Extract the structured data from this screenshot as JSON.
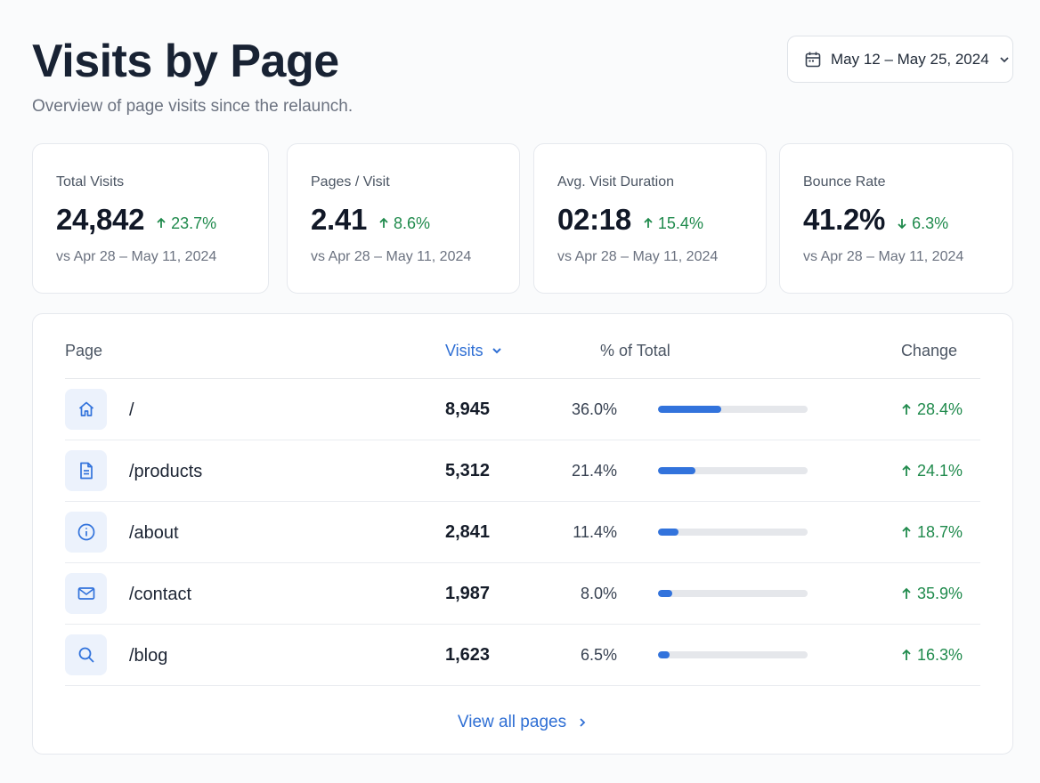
{
  "header": {
    "title": "Visits by Page",
    "subtitle": "Overview of page visits since the relaunch.",
    "date_range": "May 12 – May 25, 2024",
    "date_icon": "calendar-icon",
    "date_chevron": "chevron-down-icon"
  },
  "stats": [
    {
      "title": "Total Visits",
      "value": "24,842",
      "change": "23.7%",
      "direction": "up",
      "compare": "vs Apr 28 – May 11, 2024"
    },
    {
      "title": "Pages / Visit",
      "value": "2.41",
      "change": "8.6%",
      "direction": "up",
      "compare": "vs Apr 28 – May 11, 2024"
    },
    {
      "title": "Avg. Visit Duration",
      "value": "02:18",
      "change": "15.4%",
      "direction": "up",
      "compare": "vs Apr 28 – May 11, 2024"
    },
    {
      "title": "Bounce Rate",
      "value": "41.2%",
      "change": "6.3%",
      "direction": "down",
      "compare": "vs Apr 28 – May 11, 2024"
    }
  ],
  "table": {
    "columns": {
      "page": "Page",
      "visits": "Visits",
      "pct": "% of Total",
      "change": "Change"
    },
    "sort": {
      "column": "visits",
      "direction": "desc"
    },
    "rows": [
      {
        "icon": "home-icon",
        "page": "/",
        "visits": "8,945",
        "pct": "36.0%",
        "share": 0.36,
        "change": "28.4%"
      },
      {
        "icon": "document-icon",
        "page": "/products",
        "visits": "5,312",
        "pct": "21.4%",
        "share": 0.214,
        "change": "24.1%"
      },
      {
        "icon": "info-icon",
        "page": "/about",
        "visits": "2,841",
        "pct": "11.4%",
        "share": 0.114,
        "change": "18.7%"
      },
      {
        "icon": "mail-icon",
        "page": "/contact",
        "visits": "1,987",
        "pct": "8.0%",
        "share": 0.08,
        "change": "35.9%"
      },
      {
        "icon": "search-icon",
        "page": "/blog",
        "visits": "1,623",
        "pct": "6.5%",
        "share": 0.065,
        "change": "16.3%"
      }
    ],
    "view_all": "View all pages"
  },
  "colors": {
    "accent": "#2f6fd4",
    "bar": "#3273dc",
    "positive": "#1f8a4c"
  }
}
